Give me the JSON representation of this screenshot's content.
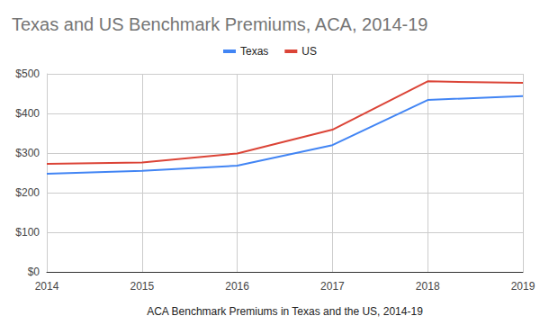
{
  "chart_data": {
    "type": "line",
    "title": "Texas and US Benchmark Premiums, ACA, 2014-19",
    "x_label": "ACA Benchmark Premiums in Texas and the US, 2014-19",
    "x": [
      2014,
      2015,
      2016,
      2017,
      2018,
      2019
    ],
    "series": [
      {
        "name": "Texas",
        "color": "#4285f4",
        "values": [
          248,
          255,
          268,
          320,
          434,
          444
        ]
      },
      {
        "name": "US",
        "color": "#db4437",
        "values": [
          273,
          276,
          299,
          359,
          481,
          477
        ]
      }
    ],
    "xlim": [
      2014,
      2019
    ],
    "xticks": [
      2014,
      2015,
      2016,
      2017,
      2018,
      2019
    ],
    "ylim": [
      0,
      500
    ],
    "yticks": [
      {
        "value": 0,
        "label": "$0"
      },
      {
        "value": 100,
        "label": "$100"
      },
      {
        "value": 200,
        "label": "$200"
      },
      {
        "value": 300,
        "label": "$300"
      },
      {
        "value": 400,
        "label": "$400"
      },
      {
        "value": 500,
        "label": "$500"
      }
    ],
    "grid": true,
    "legend": "top"
  }
}
